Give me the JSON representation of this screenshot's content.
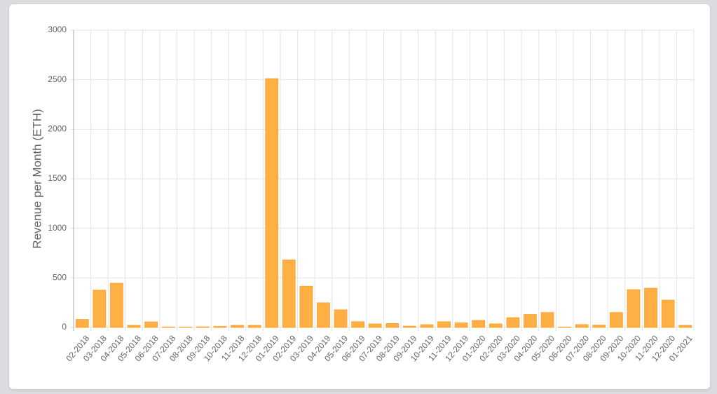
{
  "chart_data": {
    "type": "bar",
    "y_label": "Revenue per Month (ETH)",
    "categories": [
      "02-2018",
      "03-2018",
      "04-2018",
      "05-2018",
      "06-2018",
      "07-2018",
      "08-2018",
      "09-2018",
      "10-2018",
      "11-2018",
      "12-2018",
      "01-2019",
      "02-2019",
      "03-2019",
      "04-2019",
      "05-2019",
      "06-2019",
      "07-2019",
      "08-2019",
      "09-2019",
      "10-2019",
      "11-2019",
      "12-2019",
      "01-2020",
      "02-2020",
      "03-2020",
      "04-2020",
      "05-2020",
      "06-2020",
      "07-2020",
      "08-2020",
      "09-2020",
      "10-2020",
      "11-2020",
      "12-2020",
      "01-2021"
    ],
    "values": [
      80,
      375,
      445,
      20,
      55,
      3,
      2,
      5,
      10,
      20,
      20,
      2510,
      680,
      415,
      248,
      177,
      57,
      35,
      38,
      12,
      27,
      57,
      45,
      70,
      35,
      98,
      130,
      150,
      3,
      28,
      22,
      150,
      380,
      395,
      275,
      20
    ],
    "color": "#ffb045",
    "border_color": "#ff9f2e",
    "ylim": [
      0,
      3000
    ],
    "yticks": [
      0,
      500,
      1000,
      1500,
      2000,
      2500,
      3000
    ],
    "grid": true
  }
}
